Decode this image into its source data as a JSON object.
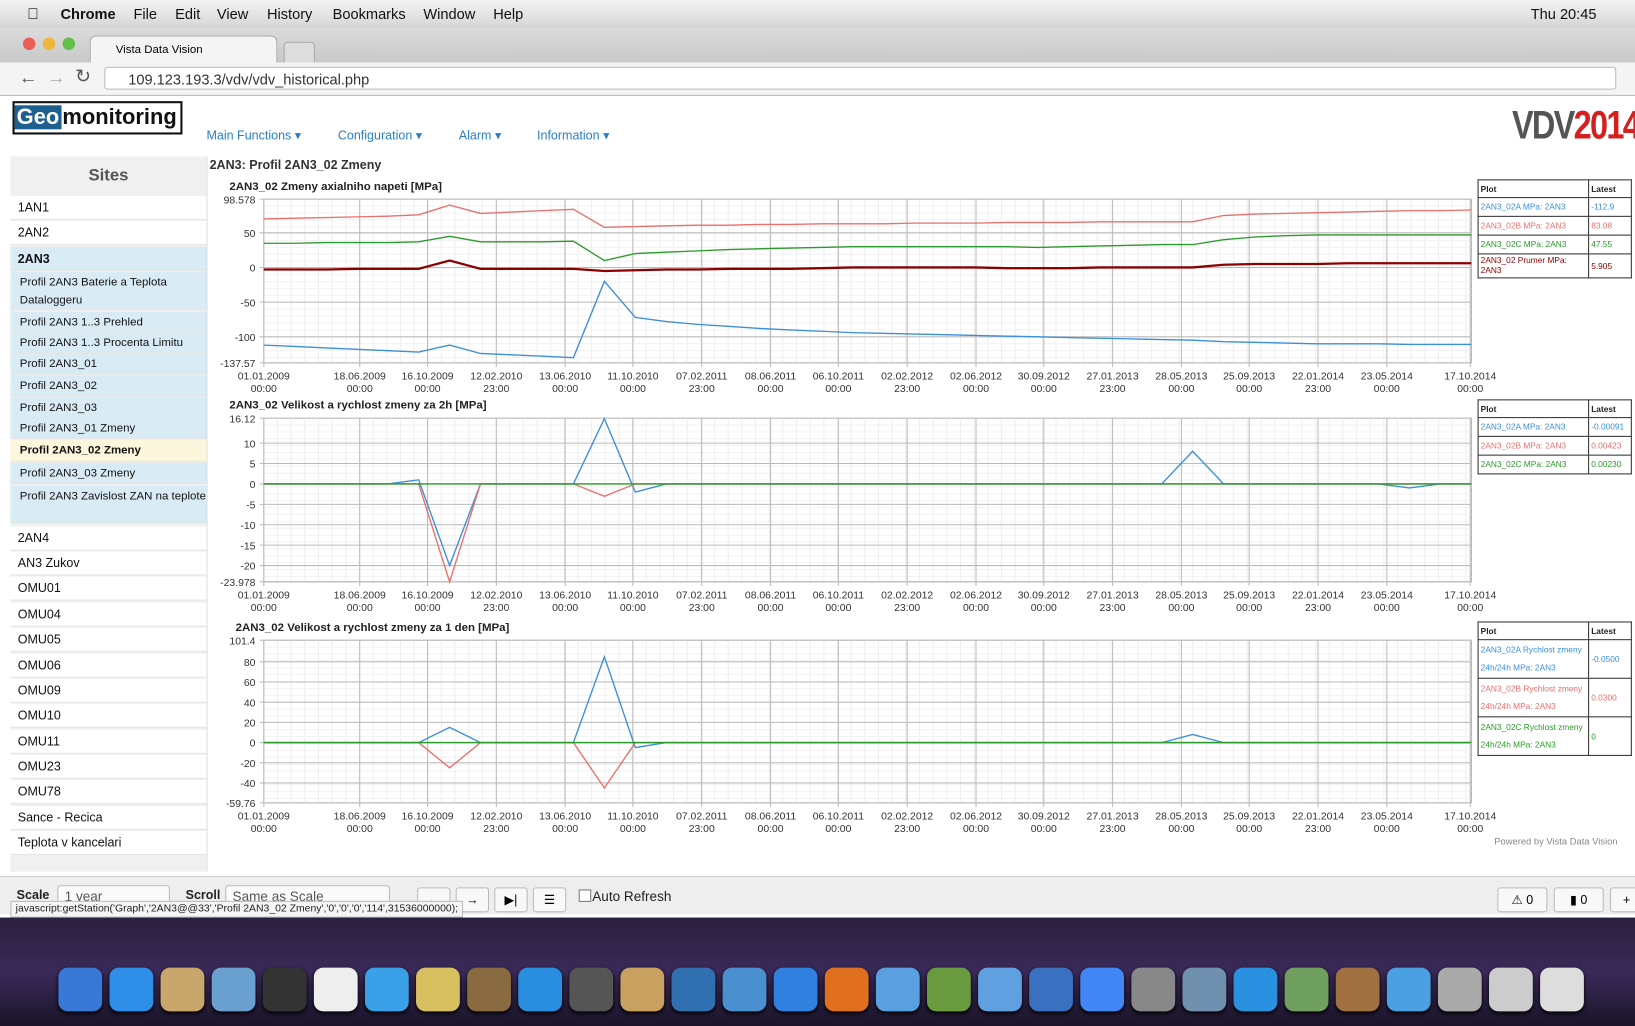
{
  "menubar": {
    "app": "Chrome",
    "items": [
      "File",
      "Edit",
      "View",
      "History",
      "Bookmarks",
      "Window",
      "Help"
    ],
    "clock": "Thu 20:45"
  },
  "browser": {
    "tab": "Vista Data Vision",
    "url": "109.123.193.3/vdv/vdv_historical.php"
  },
  "header": {
    "logo_a": "Geo",
    "logo_b": "monitoring",
    "nav": [
      "Main Functions",
      "Configuration",
      "Alarm",
      "Information"
    ],
    "brand_a": "VDV",
    "brand_b": "2014"
  },
  "sidebar": {
    "title": "Sites",
    "items": [
      {
        "label": "1AN1",
        "kind": "site"
      },
      {
        "label": "2AN2",
        "kind": "site"
      },
      {
        "label": "2AN3",
        "kind": "open-site"
      },
      {
        "label": "Profil 2AN3 Baterie a Teplota Dataloggeru",
        "kind": "profile"
      },
      {
        "label": "Profil 2AN3 1..3 Prehled",
        "kind": "profile"
      },
      {
        "label": "Profil 2AN3 1..3 Procenta Limitu",
        "kind": "profile"
      },
      {
        "label": "Profil 2AN3_01",
        "kind": "profile"
      },
      {
        "label": "Profil 2AN3_02",
        "kind": "profile"
      },
      {
        "label": "Profil 2AN3_03",
        "kind": "profile"
      },
      {
        "label": "Profil 2AN3_01 Zmeny",
        "kind": "profile"
      },
      {
        "label": "Profil 2AN3_02 Zmeny",
        "kind": "current"
      },
      {
        "label": "Profil 2AN3_03 Zmeny",
        "kind": "profile"
      },
      {
        "label": "Profil 2AN3 Zavislost ZAN na teplote",
        "kind": "profile"
      },
      {
        "label": "2AN4",
        "kind": "site"
      },
      {
        "label": "AN3 Zukov",
        "kind": "site"
      },
      {
        "label": "OMU01",
        "kind": "site"
      },
      {
        "label": "OMU04",
        "kind": "site"
      },
      {
        "label": "OMU05",
        "kind": "site"
      },
      {
        "label": "OMU06",
        "kind": "site"
      },
      {
        "label": "OMU09",
        "kind": "site"
      },
      {
        "label": "OMU10",
        "kind": "site"
      },
      {
        "label": "OMU11",
        "kind": "site"
      },
      {
        "label": "OMU23",
        "kind": "site"
      },
      {
        "label": "OMU78",
        "kind": "site"
      },
      {
        "label": "Sance - Recica",
        "kind": "site"
      },
      {
        "label": "Teplota v kancelari",
        "kind": "site"
      }
    ]
  },
  "page_title": "2AN3: Profil 2AN3_02 Zmeny",
  "x_axis_labels": [
    {
      "date": "01.01.2009",
      "time": "00:00"
    },
    {
      "date": "18.06.2009",
      "time": "00:00"
    },
    {
      "date": "16.10.2009",
      "time": "00:00"
    },
    {
      "date": "12.02.2010",
      "time": "23:00"
    },
    {
      "date": "13.06.2010",
      "time": "00:00"
    },
    {
      "date": "11.10.2010",
      "time": "00:00"
    },
    {
      "date": "07.02.2011",
      "time": "23:00"
    },
    {
      "date": "08.06.2011",
      "time": "00:00"
    },
    {
      "date": "06.10.2011",
      "time": "00:00"
    },
    {
      "date": "02.02.2012",
      "time": "23:00"
    },
    {
      "date": "02.06.2012",
      "time": "00:00"
    },
    {
      "date": "30.09.2012",
      "time": "00:00"
    },
    {
      "date": "27.01.2013",
      "time": "23:00"
    },
    {
      "date": "28.05.2013",
      "time": "00:00"
    },
    {
      "date": "25.09.2013",
      "time": "00:00"
    },
    {
      "date": "22.01.2014",
      "time": "23:00"
    },
    {
      "date": "23.05.2014",
      "time": "00:00"
    },
    {
      "date": "17.10.2014",
      "time": "00:00"
    }
  ],
  "charts": [
    {
      "type": "line",
      "title": "2AN3_02 Zmeny axialniho napeti [MPa]",
      "ylim": [
        -137.57,
        98.578
      ],
      "yticks": [
        98.578,
        50,
        0,
        -50,
        -100,
        -137.57
      ],
      "grid": true,
      "legend_header": [
        "Plot",
        "Latest"
      ],
      "series": [
        {
          "name": "2AN3_02A MPa: 2AN3",
          "latest": "-112.9",
          "color": "#3b8fd9",
          "values": [
            -112,
            -114,
            -116,
            -118,
            -120,
            -122,
            -112,
            -124,
            -126,
            -128,
            -130,
            -20,
            -72,
            -78,
            -82,
            -85,
            -88,
            -90,
            -92,
            -94,
            -95,
            -96,
            -97,
            -98,
            -99,
            -100,
            -101,
            -102,
            -103,
            -104,
            -105,
            -107,
            -108,
            -109,
            -110,
            -110,
            -110,
            -111,
            -111,
            -111
          ]
        },
        {
          "name": "2AN3_02B MPa: 2AN3",
          "latest": "83.08",
          "color": "#e8706e",
          "values": [
            70,
            71,
            72,
            73,
            74,
            76,
            90,
            78,
            80,
            82,
            84,
            58,
            59,
            60,
            61,
            61,
            62,
            62,
            63,
            63,
            63,
            64,
            64,
            64,
            65,
            65,
            65,
            66,
            66,
            66,
            66,
            75,
            77,
            78,
            79,
            80,
            81,
            82,
            82,
            83
          ]
        },
        {
          "name": "2AN3_02C MPa: 2AN3",
          "latest": "47.55",
          "color": "#2a9a2a",
          "values": [
            35,
            35,
            36,
            36,
            36,
            37,
            45,
            37,
            37,
            37,
            38,
            10,
            20,
            22,
            24,
            26,
            27,
            28,
            29,
            30,
            30,
            30,
            30,
            30,
            30,
            29,
            30,
            31,
            32,
            33,
            33,
            40,
            44,
            46,
            47,
            47,
            47,
            47,
            47,
            47
          ]
        },
        {
          "name": "2AN3_02 Prumer MPa: 2AN3",
          "latest": "5.905",
          "color": "#8b0000",
          "values": [
            -3,
            -3,
            -3,
            -2,
            -2,
            -2,
            10,
            -2,
            -2,
            -2,
            -2,
            -5,
            -4,
            -3,
            -3,
            -2,
            -2,
            -2,
            -1,
            0,
            0,
            0,
            0,
            0,
            -1,
            -1,
            -1,
            0,
            0,
            0,
            0,
            4,
            5,
            5,
            5,
            6,
            6,
            6,
            6,
            6
          ]
        }
      ]
    },
    {
      "type": "line",
      "title": "2AN3_02 Velikost a rychlost zmeny za 2h [MPa]",
      "ylim": [
        -23.978,
        16.12
      ],
      "yticks": [
        16.12,
        10,
        5,
        0,
        -5,
        -10,
        -15,
        -20,
        -23.978
      ],
      "grid": true,
      "legend_header": [
        "Plot",
        "Latest"
      ],
      "series": [
        {
          "name": "2AN3_02A MPa: 2AN3",
          "latest": "-0.00091",
          "color": "#3b8fd9",
          "values": [
            0,
            0,
            0,
            0,
            0,
            1,
            -20,
            0,
            0,
            0,
            0,
            16,
            -2,
            0,
            0,
            0,
            0,
            0,
            0,
            0,
            0,
            0,
            0,
            0,
            0,
            0,
            0,
            0,
            0,
            0,
            8,
            0,
            0,
            0,
            0,
            0,
            0,
            -1,
            0,
            0
          ]
        },
        {
          "name": "2AN3_02B MPa: 2AN3",
          "latest": "0.00423",
          "color": "#e8706e",
          "values": [
            0,
            0,
            0,
            0,
            0,
            0,
            -23.978,
            0,
            0,
            0,
            0,
            -3,
            0,
            0,
            0,
            0,
            0,
            0,
            0,
            0,
            0,
            0,
            0,
            0,
            0,
            0,
            0,
            0,
            0,
            0,
            0,
            0,
            0,
            0,
            0,
            0,
            0,
            0,
            0,
            0
          ]
        },
        {
          "name": "2AN3_02C MPa: 2AN3",
          "latest": "0.00230",
          "color": "#2a9a2a",
          "values": [
            0,
            0,
            0,
            0,
            0,
            0,
            0,
            0,
            0,
            0,
            0,
            0,
            0,
            0,
            0,
            0,
            0,
            0,
            0,
            0,
            0,
            0,
            0,
            0,
            0,
            0,
            0,
            0,
            0,
            0,
            0,
            0,
            0,
            0,
            0,
            0,
            0,
            0,
            0,
            0
          ]
        }
      ]
    },
    {
      "type": "line",
      "title": "2AN3_02 Velikost a rychlost zmeny za 1 den [MPa]",
      "ylim": [
        -59.76,
        101.4
      ],
      "yticks": [
        101.4,
        80,
        60,
        40,
        20,
        0,
        -20,
        -40,
        -59.76
      ],
      "grid": true,
      "legend_header": [
        "Plot",
        "Latest"
      ],
      "series": [
        {
          "name": "2AN3_02A Rychlost zmeny 24h/24h MPa: 2AN3",
          "latest": "-0.0500",
          "color": "#3b8fd9",
          "values": [
            0,
            0,
            0,
            0,
            0,
            0,
            15,
            0,
            0,
            0,
            0,
            85,
            -5,
            0,
            0,
            0,
            0,
            0,
            0,
            0,
            0,
            0,
            0,
            0,
            0,
            0,
            0,
            0,
            0,
            0,
            8,
            0,
            0,
            0,
            0,
            0,
            0,
            0,
            0,
            0
          ]
        },
        {
          "name": "2AN3_02B Rychlost zmeny 24h/24h MPa: 2AN3",
          "latest": "0.0300",
          "color": "#e8706e",
          "values": [
            0,
            0,
            0,
            0,
            0,
            0,
            -25,
            0,
            0,
            0,
            0,
            -45,
            0,
            0,
            0,
            0,
            0,
            0,
            0,
            0,
            0,
            0,
            0,
            0,
            0,
            0,
            0,
            0,
            0,
            0,
            0,
            0,
            0,
            0,
            0,
            0,
            0,
            0,
            0,
            0
          ]
        },
        {
          "name": "2AN3_02C Rychlost zmeny 24h/24h MPa: 2AN3",
          "latest": "0",
          "color": "#2a9a2a",
          "values": [
            0,
            0,
            0,
            0,
            0,
            0,
            0,
            0,
            0,
            0,
            0,
            0,
            0,
            0,
            0,
            0,
            0,
            0,
            0,
            0,
            0,
            0,
            0,
            0,
            0,
            0,
            0,
            0,
            0,
            0,
            0,
            0,
            0,
            0,
            0,
            0,
            0,
            0,
            0,
            0
          ]
        }
      ]
    }
  ],
  "footer": {
    "powered": "Powered by Vista Data Vision",
    "scale_label": "Scale",
    "scale_value": "1 year",
    "scroll_label": "Scroll",
    "scroll_value": "Same as Scale",
    "auto_refresh": "Auto Refresh",
    "alarms": "0",
    "messages": "0",
    "status": "javascript:getStation('Graph','2AN3@@33','Profil 2AN3_02 Zmeny','0','0','0','114',31536000000);"
  }
}
